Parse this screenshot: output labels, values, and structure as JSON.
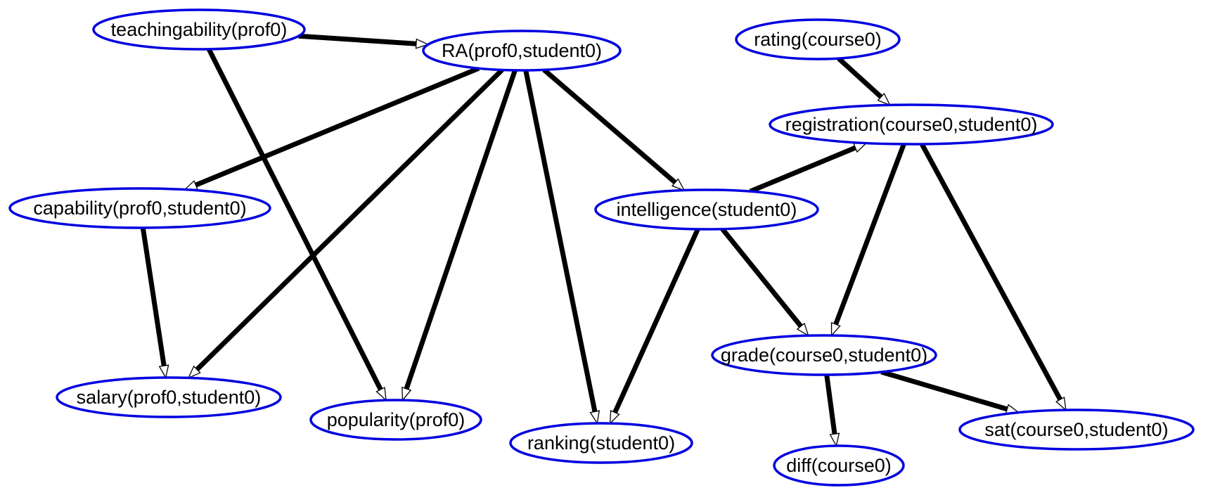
{
  "colors": {
    "node_border": "#0000e0",
    "edge": "#000000",
    "background": "#ffffff"
  },
  "nodes": [
    {
      "id": "teachingability",
      "label": "teachingability(prof0)"
    },
    {
      "id": "ra",
      "label": "RA(prof0,student0)"
    },
    {
      "id": "rating",
      "label": "rating(course0)"
    },
    {
      "id": "registration",
      "label": "registration(course0,student0)"
    },
    {
      "id": "capability",
      "label": "capability(prof0,student0)"
    },
    {
      "id": "intelligence",
      "label": "intelligence(student0)"
    },
    {
      "id": "grade",
      "label": "grade(course0,student0)"
    },
    {
      "id": "salary",
      "label": "salary(prof0,student0)"
    },
    {
      "id": "popularity",
      "label": "popularity(prof0)"
    },
    {
      "id": "ranking",
      "label": "ranking(student0)"
    },
    {
      "id": "sat",
      "label": "sat(course0,student0)"
    },
    {
      "id": "diff",
      "label": "diff(course0)"
    }
  ],
  "edges": [
    {
      "from": "teachingability",
      "to": "ra"
    },
    {
      "from": "teachingability",
      "to": "popularity"
    },
    {
      "from": "ra",
      "to": "capability"
    },
    {
      "from": "ra",
      "to": "salary"
    },
    {
      "from": "ra",
      "to": "popularity"
    },
    {
      "from": "ra",
      "to": "ranking"
    },
    {
      "from": "ra",
      "to": "intelligence"
    },
    {
      "from": "rating",
      "to": "registration"
    },
    {
      "from": "intelligence",
      "to": "registration"
    },
    {
      "from": "registration",
      "to": "grade"
    },
    {
      "from": "registration",
      "to": "sat"
    },
    {
      "from": "capability",
      "to": "salary"
    },
    {
      "from": "intelligence",
      "to": "ranking"
    },
    {
      "from": "intelligence",
      "to": "grade"
    },
    {
      "from": "grade",
      "to": "diff"
    },
    {
      "from": "grade",
      "to": "sat"
    }
  ]
}
